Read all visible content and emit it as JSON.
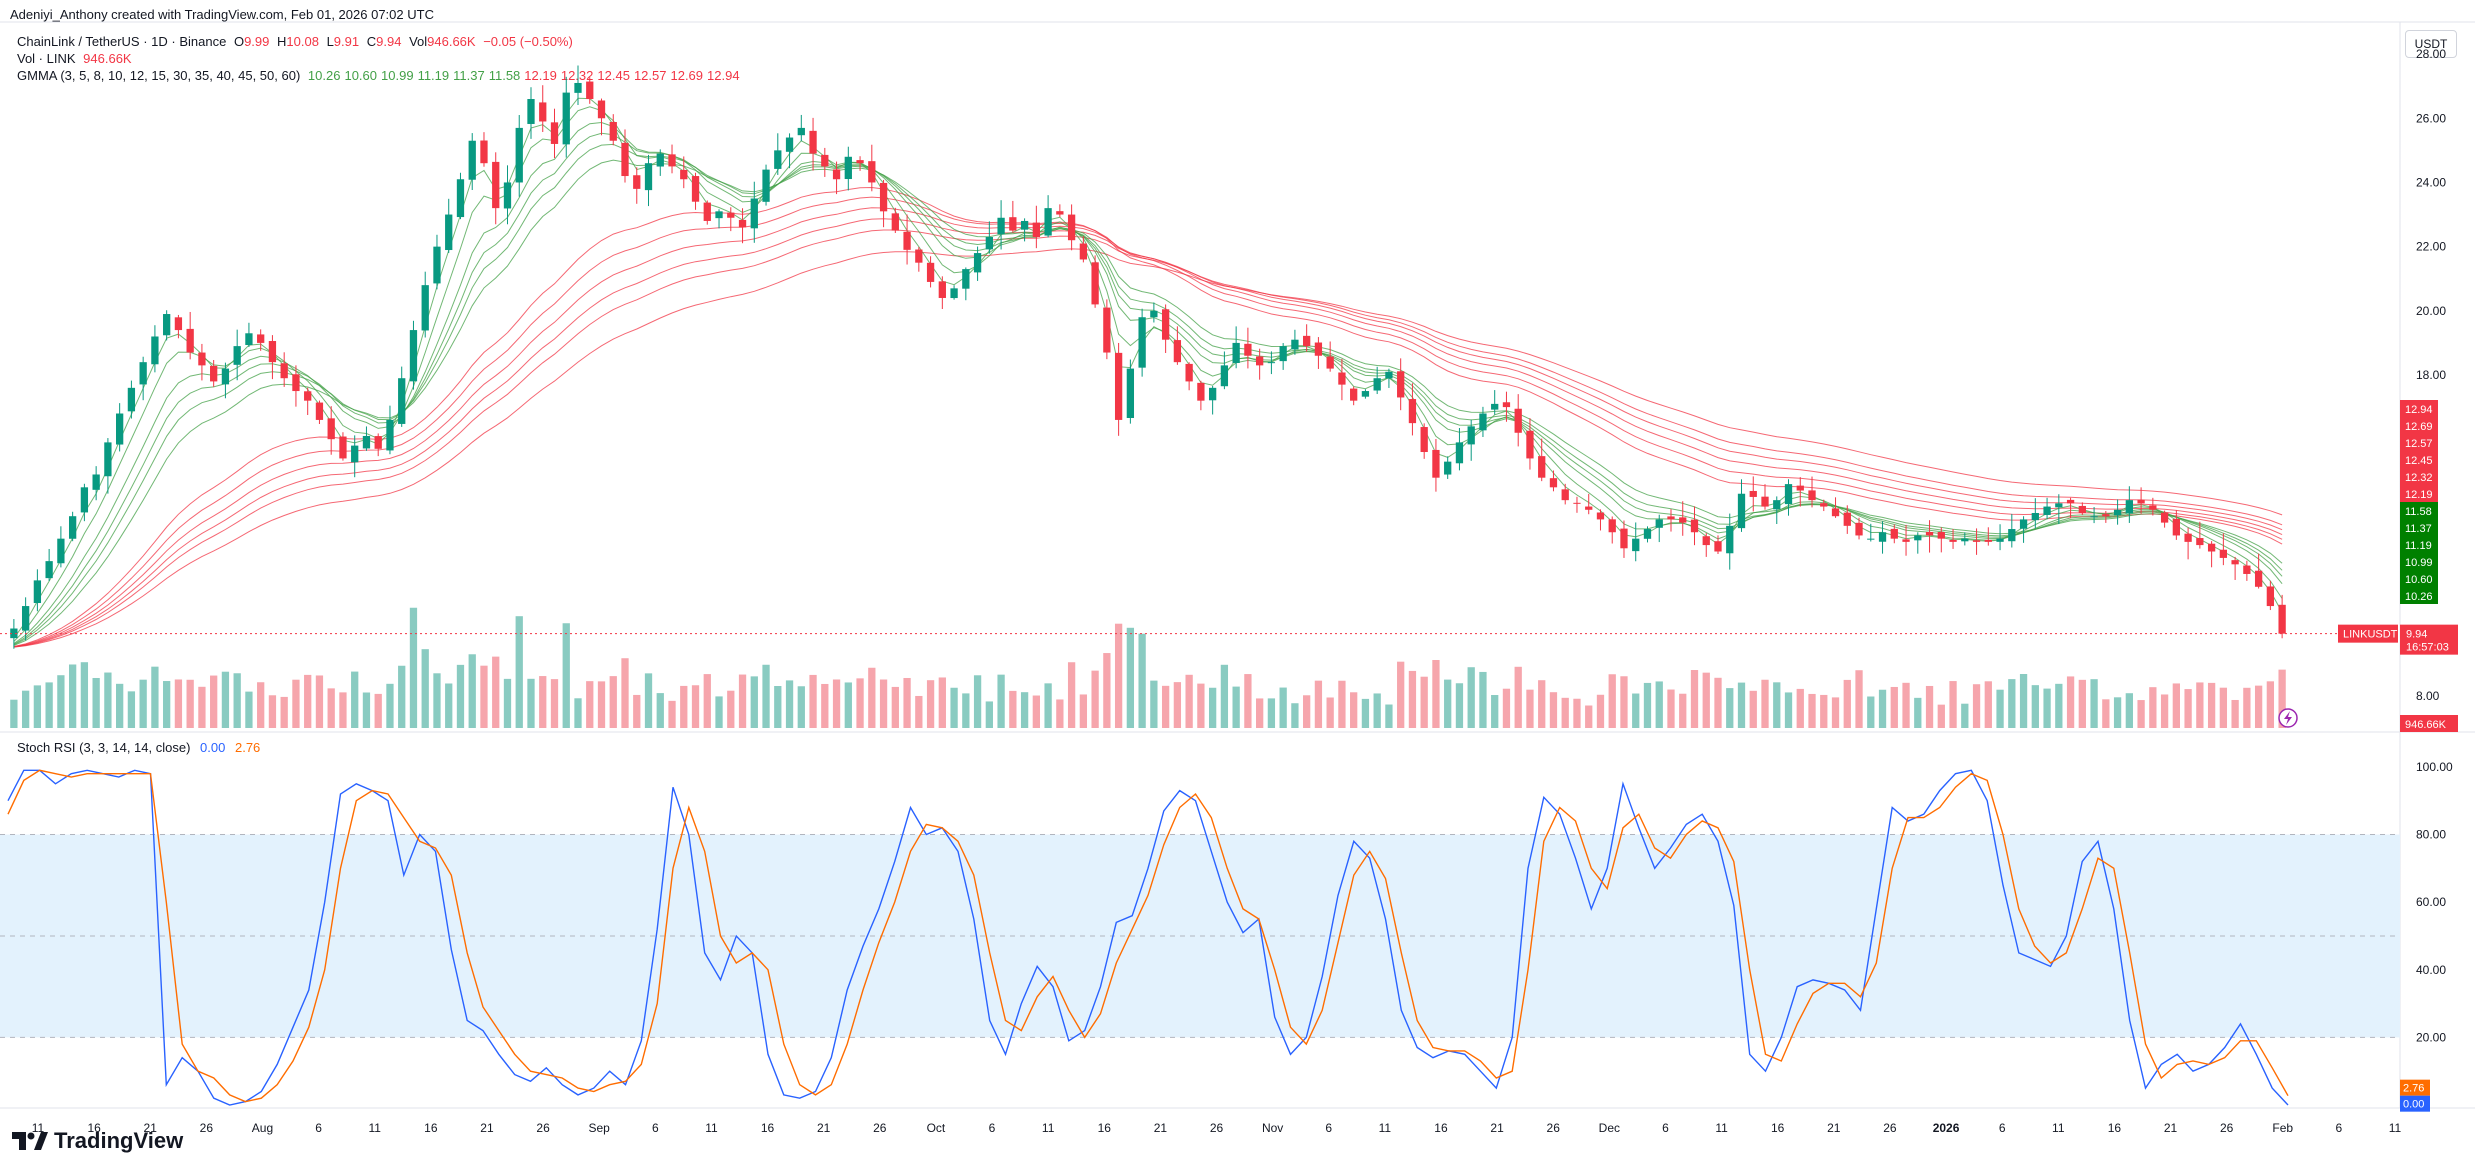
{
  "caption": "Adeniyi_Anthony created with TradingView.com, Feb 01, 2026 07:02 UTC",
  "legend": {
    "title": "ChainLink / TetherUS · 1D · Binance",
    "o_label": "O",
    "o_value": "9.99",
    "h_label": "H",
    "h_value": "10.08",
    "l_label": "L",
    "l_value": "9.91",
    "c_label": "C",
    "c_value": "9.94",
    "vol_label": "Vol",
    "vol_value": "946.66K",
    "change": "−0.05 (−0.50%)",
    "vol_line_label": "Vol · LINK",
    "vol_line_value": "946.66K",
    "gmma_label": "GMMA (3, 5, 8, 10, 12, 15, 30, 35, 40, 45, 50, 60)",
    "gmma_short_values": [
      "10.26",
      "10.60",
      "10.99",
      "11.19",
      "11.37",
      "11.58"
    ],
    "gmma_long_values": [
      "12.19",
      "12.32",
      "12.45",
      "12.57",
      "12.69",
      "12.94"
    ],
    "stoch_label": "Stoch RSI (3, 3, 14, 14, close)",
    "stoch_k": "0.00",
    "stoch_d": "2.76"
  },
  "unit_button": "USDT",
  "brand": "TradingView",
  "colors": {
    "up": "#089981",
    "down": "#f23645",
    "vol_up": "#89cbc1",
    "vol_down": "#f6a5ac",
    "gmma_short": "#43a047",
    "gmma_long": "#f23645",
    "k_line": "#2962ff",
    "d_line": "#ff6d00",
    "rsi_band": "#e3f2fd"
  },
  "chart_data": [
    {
      "type": "candlestick",
      "symbol": "LINKUSDT",
      "price_axis_ticks": [
        8.0,
        18.0,
        20.0,
        22.0,
        24.0,
        26.0,
        28.0
      ],
      "ylim": [
        7.0,
        29.0
      ],
      "last_price_label": "LINKUSDT",
      "last_price": "9.94",
      "countdown": "16:57:03",
      "volume_label": "946.66K",
      "x_ticks": [
        "11",
        "16",
        "21",
        "26",
        "Aug",
        "6",
        "11",
        "16",
        "21",
        "26",
        "Sep",
        "6",
        "11",
        "16",
        "21",
        "26",
        "Oct",
        "6",
        "11",
        "16",
        "21",
        "26",
        "Nov",
        "6",
        "11",
        "16",
        "21",
        "26",
        "Dec",
        "6",
        "11",
        "16",
        "21",
        "26",
        "2026",
        "6",
        "11",
        "16",
        "21",
        "26",
        "Feb",
        "6",
        "11"
      ],
      "x_bold_ticks": [
        "2026"
      ],
      "series_close": [
        10.1,
        10.8,
        11.6,
        12.2,
        12.9,
        13.6,
        14.5,
        14.9,
        15.9,
        16.8,
        17.6,
        18.4,
        19.2,
        19.9,
        19.4,
        18.7,
        18.3,
        17.8,
        18.2,
        18.9,
        19.3,
        19.0,
        18.4,
        17.9,
        17.5,
        17.2,
        16.6,
        16.0,
        15.4,
        15.8,
        16.1,
        15.7,
        16.6,
        17.9,
        19.4,
        20.8,
        22.0,
        23.0,
        24.1,
        25.3,
        24.6,
        23.2,
        24.0,
        25.7,
        26.6,
        25.9,
        25.2,
        26.8,
        27.1,
        26.6,
        26.0,
        25.3,
        24.2,
        23.8,
        24.6,
        24.9,
        24.5,
        24.1,
        23.4,
        22.8,
        23.1,
        22.9,
        22.6,
        23.5,
        24.4,
        25.0,
        25.4,
        25.7,
        24.9,
        24.5,
        24.1,
        24.8,
        24.6,
        24.0,
        23.1,
        22.5,
        21.9,
        21.5,
        20.9,
        20.4,
        20.7,
        21.3,
        21.8,
        22.3,
        22.9,
        22.5,
        22.8,
        22.3,
        23.2,
        23.0,
        22.2,
        21.6,
        20.2,
        18.7,
        16.6,
        18.2,
        19.8,
        20.0,
        19.1,
        18.4,
        17.8,
        17.2,
        17.6,
        18.3,
        19.0,
        18.6,
        18.3,
        18.4,
        18.9,
        19.1,
        18.9,
        18.6,
        18.2,
        17.7,
        17.2,
        17.5,
        17.9,
        18.1,
        17.3,
        16.5,
        15.6,
        14.8,
        15.3,
        15.9,
        16.4,
        16.8,
        17.1,
        17.0,
        16.2,
        15.4,
        14.8,
        14.5,
        14.1,
        14.0,
        13.8,
        13.5,
        13.1,
        12.6,
        12.9,
        13.2,
        13.5,
        13.5,
        13.4,
        13.1,
        12.7,
        12.5,
        13.3,
        14.3,
        14.2,
        13.9,
        14.1,
        14.6,
        14.4,
        14.1,
        13.9,
        13.6,
        13.3,
        13.0,
        12.9,
        13.1,
        12.9,
        12.8,
        13.0,
        13.0,
        12.9,
        12.8,
        12.9,
        12.8,
        12.8,
        12.9,
        13.2,
        13.5,
        13.7,
        13.9,
        14.0,
        14.0,
        13.7,
        13.6,
        13.6,
        13.8,
        14.1,
        14.0,
        13.8,
        13.4,
        13.0,
        12.8,
        12.7,
        12.5,
        12.3,
        12.1,
        11.8,
        11.4,
        10.8,
        9.94
      ]
    },
    {
      "type": "line",
      "title": "Stoch RSI (3, 3, 14, 14, close)",
      "ylim": [
        0,
        105
      ],
      "y_ticks": [
        20.0,
        40.0,
        60.0,
        80.0,
        100.0
      ],
      "band": [
        20,
        80
      ],
      "mid_line": 50,
      "last_k": "0.00",
      "last_d": "2.76",
      "series": [
        {
          "values": [
            90,
            99,
            99,
            95,
            98,
            99,
            98,
            97,
            99,
            98,
            6,
            14,
            10,
            2,
            0,
            1,
            4,
            12,
            23,
            34,
            60,
            92,
            95,
            93,
            90,
            68,
            80,
            75,
            46,
            25,
            22,
            15,
            9,
            7,
            11,
            6,
            3,
            5,
            10,
            6,
            19,
            52,
            94,
            80,
            45,
            37,
            50,
            45,
            15,
            3,
            2,
            4,
            14,
            34,
            47,
            58,
            72,
            88,
            80,
            82,
            75,
            55,
            25,
            15,
            30,
            41,
            35,
            19,
            22,
            35,
            54,
            56,
            70,
            87,
            93,
            90,
            75,
            60,
            51,
            55,
            26,
            15,
            20,
            38,
            62,
            78,
            73,
            55,
            28,
            17,
            14,
            16,
            15,
            10,
            5,
            20,
            70,
            91,
            86,
            73,
            58,
            70,
            95,
            82,
            70,
            76,
            83,
            86,
            78,
            59,
            15,
            10,
            20,
            35,
            37,
            36,
            34,
            28,
            58,
            88,
            84,
            86,
            93,
            98,
            99,
            90,
            65,
            45,
            43,
            41,
            50,
            72,
            78,
            58,
            25,
            5,
            12,
            15,
            10,
            12,
            17,
            24,
            15,
            5,
            0
          ]
        },
        {
          "values": [
            86,
            96,
            99,
            98,
            97,
            98,
            98,
            98,
            98,
            98,
            60,
            18,
            10,
            8,
            3,
            1,
            2,
            6,
            13,
            23,
            40,
            70,
            90,
            93,
            92,
            85,
            78,
            76,
            68,
            45,
            29,
            22,
            15,
            10,
            9,
            8,
            5,
            4,
            6,
            7,
            12,
            30,
            70,
            88,
            75,
            50,
            42,
            45,
            40,
            18,
            6,
            3,
            6,
            18,
            34,
            48,
            60,
            75,
            83,
            82,
            78,
            68,
            45,
            25,
            22,
            32,
            38,
            28,
            20,
            27,
            42,
            52,
            62,
            77,
            88,
            92,
            85,
            70,
            58,
            55,
            40,
            23,
            18,
            28,
            48,
            68,
            75,
            67,
            45,
            25,
            17,
            16,
            16,
            13,
            8,
            10,
            40,
            78,
            88,
            84,
            70,
            64,
            82,
            86,
            76,
            73,
            80,
            84,
            82,
            72,
            40,
            15,
            13,
            24,
            33,
            36,
            36,
            32,
            42,
            70,
            85,
            85,
            88,
            94,
            98,
            96,
            80,
            58,
            47,
            42,
            45,
            58,
            73,
            70,
            45,
            18,
            8,
            12,
            13,
            12,
            14,
            19,
            19,
            11,
            2.76
          ]
        }
      ]
    }
  ]
}
